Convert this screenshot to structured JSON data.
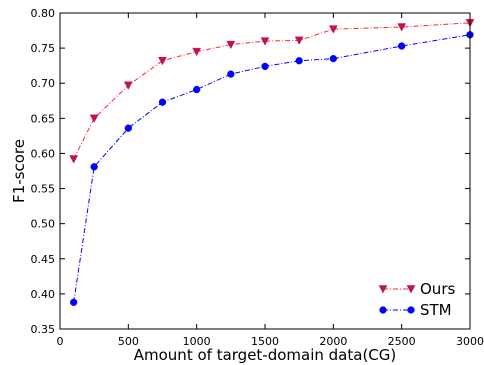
{
  "chart_data": {
    "type": "line",
    "title": "",
    "xlabel": "Amount of target-domain data(CG)",
    "ylabel": "F1-score",
    "xlim": [
      0,
      3000
    ],
    "ylim": [
      0.35,
      0.8
    ],
    "xticks": [
      0,
      500,
      1000,
      1500,
      2000,
      2500,
      3000
    ],
    "yticks": [
      0.35,
      0.4,
      0.45,
      0.5,
      0.55,
      0.6,
      0.65,
      0.7,
      0.75,
      0.8
    ],
    "xtick_labels": [
      "0",
      "500",
      "1000",
      "1500",
      "2000",
      "2500",
      "3000"
    ],
    "ytick_labels": [
      "0.35",
      "0.40",
      "0.45",
      "0.50",
      "0.55",
      "0.60",
      "0.65",
      "0.70",
      "0.75",
      "0.80"
    ],
    "grid": false,
    "legend_position": "bottom-right",
    "series": [
      {
        "name": "Ours",
        "color": "#c0134f",
        "marker": "triangle-down",
        "line_color": "#ff2a2a",
        "x": [
          100,
          250,
          500,
          750,
          1000,
          1250,
          1500,
          1750,
          2000,
          2500,
          3000
        ],
        "y": [
          0.592,
          0.65,
          0.697,
          0.732,
          0.745,
          0.755,
          0.76,
          0.761,
          0.777,
          0.78,
          0.786
        ]
      },
      {
        "name": "STM",
        "color": "#0000ff",
        "marker": "circle",
        "line_color": "#0000ff",
        "x": [
          100,
          250,
          500,
          750,
          1000,
          1250,
          1500,
          1750,
          2000,
          2500,
          3000
        ],
        "y": [
          0.388,
          0.581,
          0.636,
          0.673,
          0.691,
          0.713,
          0.724,
          0.732,
          0.735,
          0.753,
          0.769
        ]
      }
    ]
  }
}
